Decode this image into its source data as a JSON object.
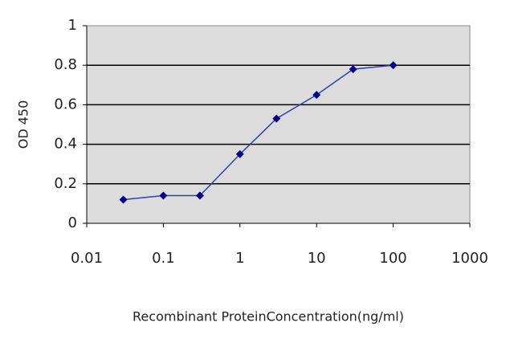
{
  "chart_data": {
    "type": "line",
    "x_label": "Recombinant ProteinConcentration(ng/ml)",
    "y_label": "OD 450",
    "xscale": "log",
    "xlim": [
      0.01,
      1000
    ],
    "xticks": [
      0.01,
      0.1,
      1,
      10,
      100,
      1000
    ],
    "ylim": [
      0,
      1
    ],
    "yticks": [
      0,
      0.2,
      0.4,
      0.6,
      0.8,
      1
    ],
    "grid": true,
    "series": [
      {
        "color": "#3040b0",
        "marker_color": "#00008b",
        "x": [
          0.03,
          0.1,
          0.3,
          1,
          3,
          10,
          30,
          100
        ],
        "values": [
          0.12,
          0.14,
          0.14,
          0.35,
          0.53,
          0.65,
          0.78,
          0.8
        ]
      }
    ]
  }
}
